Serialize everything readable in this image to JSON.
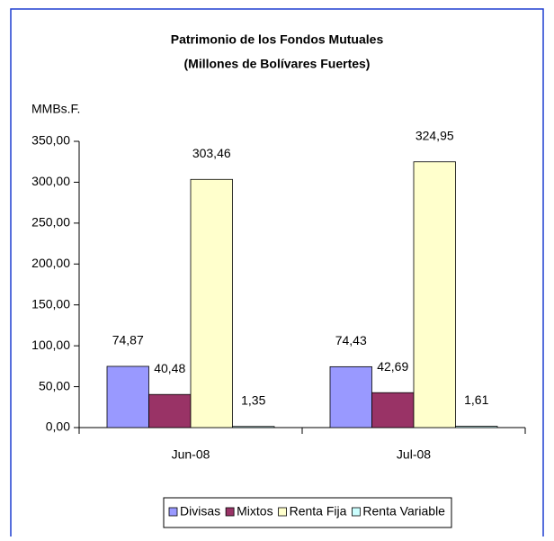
{
  "chart_data": {
    "type": "bar",
    "title": "Patrimonio de los Fondos Mutuales",
    "subtitle": "(Millones de Bolívares Fuertes)",
    "ylabel": "MMBs.F.",
    "categories": [
      "Jun-08",
      "Jul-08"
    ],
    "series": [
      {
        "name": "Divisas",
        "color": "#9999ff",
        "values": [
          74.87,
          74.43
        ],
        "value_labels": [
          "74,87",
          "74,43"
        ]
      },
      {
        "name": "Mixtos",
        "color": "#993366",
        "values": [
          40.48,
          42.69
        ],
        "value_labels": [
          "40,48",
          "42,69"
        ]
      },
      {
        "name": "Renta Fija",
        "color": "#ffffcc",
        "values": [
          303.46,
          324.95
        ],
        "value_labels": [
          "303,46",
          "324,95"
        ]
      },
      {
        "name": "Renta Variable",
        "color": "#ccffff",
        "values": [
          1.35,
          1.61
        ],
        "value_labels": [
          "1,35",
          "1,61"
        ]
      }
    ],
    "ylim": [
      0,
      350
    ],
    "yticks": [
      {
        "value": 0,
        "label": "0,00"
      },
      {
        "value": 50,
        "label": "50,00"
      },
      {
        "value": 100,
        "label": "100,00"
      },
      {
        "value": 150,
        "label": "150,00"
      },
      {
        "value": 200,
        "label": "200,00"
      },
      {
        "value": 250,
        "label": "250,00"
      },
      {
        "value": 300,
        "label": "300,00"
      },
      {
        "value": 350,
        "label": "350,00"
      }
    ],
    "grid": false,
    "legend": "bottom"
  }
}
